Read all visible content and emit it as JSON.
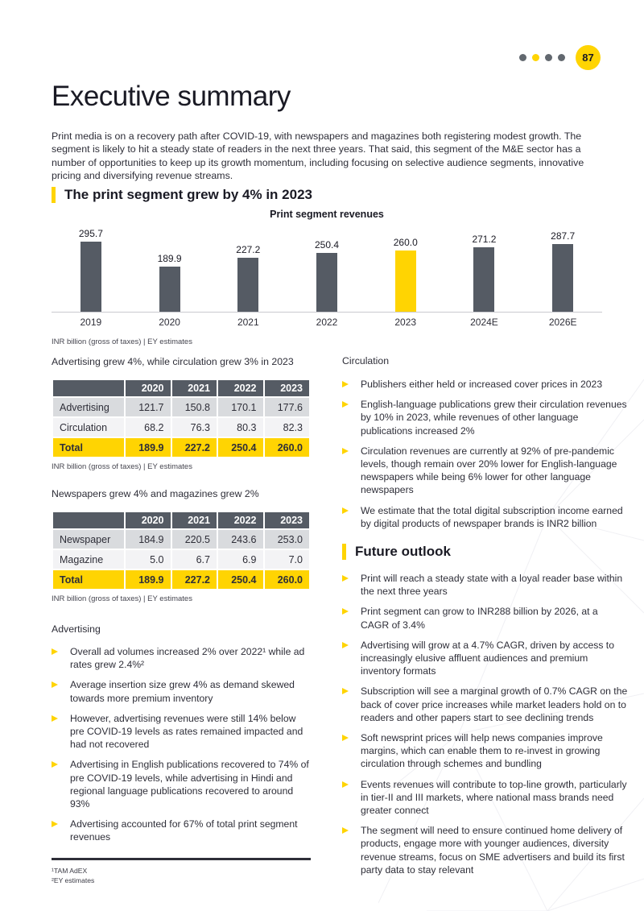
{
  "theme": {
    "accent": "#ffd402",
    "slate": "#555b64",
    "dot_gray": "#62686f"
  },
  "header": {
    "page_number": "87",
    "dots": [
      "#62686f",
      "#ffd402",
      "#62686f",
      "#62686f"
    ]
  },
  "title": "Executive summary",
  "intro": "Print media is on a recovery path after COVID-19, with newspapers and magazines both registering modest growth. The segment is likely to hit a steady state of readers in the next three years. That said, this segment of the M&E sector has a number of opportunities to keep up its growth momentum, including focusing on selective audience segments, innovative pricing and diversifying revenue streams.",
  "print_section": {
    "heading": "The print segment grew by 4% in 2023"
  },
  "chart_data": {
    "type": "bar",
    "title": "Print segment revenues",
    "categories": [
      "2019",
      "2020",
      "2021",
      "2022",
      "2023",
      "2024E",
      "2026E"
    ],
    "values": [
      295.7,
      189.9,
      227.2,
      250.4,
      260.0,
      271.2,
      287.7
    ],
    "labels": [
      "295.7",
      "189.9",
      "227.2",
      "250.4",
      "260.0",
      "271.2",
      "287.7"
    ],
    "highlight_category": "2023",
    "bar_color": "#555b64",
    "highlight_color": "#ffd402",
    "ylim": [
      0,
      300
    ],
    "grid": false,
    "footnote": "INR billion (gross of taxes) | EY estimates"
  },
  "tables": [
    {
      "caption": "Advertising grew 4%, while circulation grew 3% in 2023",
      "columns": [
        "",
        "2020",
        "2021",
        "2022",
        "2023"
      ],
      "rows": [
        {
          "label": "Advertising",
          "values": [
            "121.7",
            "150.8",
            "170.1",
            "177.6"
          ]
        },
        {
          "label": "Circulation",
          "values": [
            "68.2",
            "76.3",
            "80.3",
            "82.3"
          ]
        },
        {
          "label": "Total",
          "values": [
            "189.9",
            "227.2",
            "250.4",
            "260.0"
          ]
        }
      ],
      "footnote": "INR billion (gross of taxes) | EY estimates"
    },
    {
      "caption": "Newspapers grew 4% and magazines grew 2%",
      "columns": [
        "",
        "2020",
        "2021",
        "2022",
        "2023"
      ],
      "rows": [
        {
          "label": "Newspaper",
          "values": [
            "184.9",
            "220.5",
            "243.6",
            "253.0"
          ]
        },
        {
          "label": "Magazine",
          "values": [
            "5.0",
            "6.7",
            "6.9",
            "7.0"
          ]
        },
        {
          "label": "Total",
          "values": [
            "189.9",
            "227.2",
            "250.4",
            "260.0"
          ]
        }
      ],
      "footnote": "INR billion (gross of taxes) | EY estimates"
    }
  ],
  "advertising": {
    "label": "Advertising",
    "bullets": [
      "Overall ad volumes increased 2% over 2022¹ while ad rates grew 2.4%²",
      "Average insertion size grew 4% as demand skewed towards more premium inventory",
      "However, advertising revenues were still 14% below pre COVID-19 levels as rates remained impacted and had not recovered",
      "Advertising in English publications recovered to 74% of pre COVID-19 levels, while advertising in Hindi and regional language publications recovered to around 93%",
      "Advertising accounted for 67% of total print segment revenues"
    ]
  },
  "circulation": {
    "label": "Circulation",
    "bullets": [
      "Publishers either held or increased cover prices in 2023",
      "English-language publications grew their circulation revenues by 10% in 2023, while revenues of other language publications increased 2%",
      "Circulation revenues are currently at 92% of pre-pandemic levels, though remain over 20% lower for English-language newspapers while being 6% lower for other language newspapers",
      "We estimate that the total digital subscription income earned by digital products of newspaper brands is INR2 billion"
    ]
  },
  "future_outlook": {
    "heading": "Future outlook",
    "bullets": [
      "Print will reach a steady state with a loyal reader base within the next three years",
      "Print segment can grow to INR288 billion by 2026, at a CAGR of 3.4%",
      "Advertising will grow at a 4.7% CAGR, driven by access to increasingly elusive affluent audiences and premium inventory formats",
      "Subscription will see a marginal growth of 0.7% CAGR on the back of cover price increases while market leaders hold on to readers and other papers start to see declining trends",
      "Soft newsprint prices will help news companies improve margins, which can enable them to re-invest in growing circulation through schemes and bundling",
      "Events revenues will contribute to top-line growth, particularly in tier-II and III markets, where national mass brands need greater connect",
      "The segment will need to ensure continued home delivery of products, engage more with younger audiences, diversity revenue streams, focus on SME advertisers and build its first party data to stay relevant"
    ]
  },
  "page_footnotes": [
    "¹TAM AdEX",
    "²EY estimates"
  ]
}
